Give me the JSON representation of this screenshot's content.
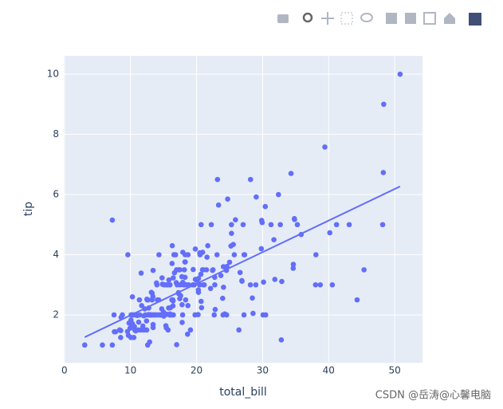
{
  "chart_data": {
    "type": "scatter",
    "x_label": "total_bill",
    "y_label": "tip",
    "xlim": [
      -0.1,
      54.2
    ],
    "ylim": [
      0.41,
      10.61
    ],
    "xticks": [
      0,
      10,
      20,
      30,
      40,
      50
    ],
    "yticks": [
      2,
      4,
      6,
      8,
      10
    ],
    "grid": true,
    "color": "#636efa",
    "background": "#e5ecf6",
    "x": [
      16.99,
      10.34,
      21.01,
      23.68,
      24.59,
      25.29,
      8.77,
      26.88,
      15.04,
      14.78,
      10.27,
      35.26,
      15.42,
      18.43,
      14.83,
      21.58,
      10.33,
      16.29,
      16.97,
      20.65,
      17.92,
      20.29,
      15.77,
      39.42,
      19.82,
      17.81,
      13.37,
      12.69,
      21.7,
      19.65,
      9.55,
      18.35,
      15.06,
      20.69,
      17.78,
      24.06,
      16.31,
      16.93,
      18.69,
      31.27,
      16.04,
      17.46,
      13.94,
      9.68,
      30.4,
      18.29,
      22.23,
      32.4,
      28.55,
      18.04,
      12.54,
      10.29,
      34.81,
      9.94,
      25.56,
      19.49,
      38.01,
      26.41,
      11.24,
      48.27,
      20.29,
      13.81,
      11.02,
      18.29,
      17.59,
      20.08,
      16.45,
      3.07,
      20.23,
      15.01,
      12.02,
      17.07,
      26.86,
      25.28,
      14.73,
      10.51,
      17.92,
      27.2,
      22.76,
      17.29,
      19.44,
      16.66,
      10.07,
      32.68,
      15.98,
      34.83,
      13.03,
      18.28,
      24.71,
      21.16,
      28.97,
      22.49,
      5.75,
      16.32,
      22.75,
      40.17,
      27.28,
      12.03,
      21.01,
      12.46,
      11.35,
      15.38,
      44.3,
      22.42,
      20.92,
      15.36,
      20.49,
      25.21,
      18.24,
      14.31,
      14.0,
      7.25,
      38.07,
      23.95,
      25.71,
      17.31,
      29.93,
      10.65,
      12.43,
      24.08,
      11.69,
      13.42,
      14.26,
      15.95,
      12.48,
      29.8,
      8.52,
      14.52,
      11.38,
      22.82,
      19.08,
      20.27,
      11.17,
      12.26,
      18.26,
      8.51,
      10.33,
      14.15,
      16.0,
      13.16,
      17.47,
      34.3,
      41.19,
      27.05,
      16.43,
      8.35,
      18.64,
      11.87,
      9.78,
      7.51,
      14.07,
      13.13,
      17.26,
      24.55,
      19.77,
      29.85,
      48.17,
      25.0,
      13.39,
      16.49,
      21.5,
      12.66,
      16.21,
      13.81,
      17.51,
      24.52,
      20.76,
      31.71,
      10.59,
      10.63,
      50.81,
      15.81,
      7.25,
      31.85,
      16.82,
      32.9,
      17.89,
      14.48,
      9.6,
      34.63,
      34.65,
      23.33,
      45.35,
      23.17,
      40.55,
      20.69,
      20.9,
      30.46,
      18.15,
      23.1,
      15.69,
      19.81,
      28.44,
      15.48,
      16.58,
      7.56,
      10.34,
      43.11,
      13.0,
      13.51,
      18.71,
      12.74,
      13.0,
      16.4,
      20.53,
      16.47,
      26.59,
      38.73,
      24.27,
      12.76,
      30.06,
      25.89,
      48.33,
      13.27,
      28.17,
      12.9,
      28.15,
      11.59,
      7.74,
      30.14,
      12.16,
      13.42,
      8.58,
      15.98,
      13.42,
      16.27,
      10.09,
      20.45,
      13.28,
      22.12,
      24.01,
      15.69,
      11.61,
      10.77,
      15.53,
      10.07,
      12.6,
      32.83,
      35.83,
      29.03,
      27.18,
      22.67,
      17.82,
      18.78
    ],
    "values": [
      1.01,
      1.66,
      3.5,
      3.31,
      3.61,
      4.71,
      2.0,
      3.12,
      1.96,
      3.23,
      1.71,
      5.0,
      1.57,
      3.0,
      3.02,
      3.92,
      1.67,
      3.71,
      3.5,
      3.35,
      4.08,
      2.75,
      2.23,
      7.58,
      3.18,
      2.34,
      2.0,
      2.0,
      4.3,
      3.0,
      1.45,
      2.5,
      3.0,
      2.45,
      3.27,
      3.6,
      2.0,
      3.07,
      2.31,
      5.0,
      2.24,
      2.54,
      3.06,
      1.32,
      5.6,
      3.0,
      5.0,
      6.0,
      2.05,
      3.0,
      2.5,
      2.6,
      5.2,
      1.56,
      4.34,
      3.51,
      3.0,
      1.5,
      1.76,
      6.73,
      3.21,
      2.0,
      1.98,
      3.76,
      2.64,
      3.15,
      2.47,
      1.0,
      2.01,
      2.09,
      1.97,
      3.0,
      3.14,
      5.0,
      2.2,
      1.25,
      3.08,
      4.0,
      3.0,
      2.71,
      3.0,
      3.4,
      1.83,
      5.0,
      2.03,
      5.17,
      2.0,
      4.0,
      5.85,
      3.0,
      3.0,
      3.5,
      1.0,
      4.3,
      3.25,
      4.73,
      4.0,
      1.5,
      3.0,
      1.5,
      2.5,
      3.0,
      2.5,
      3.48,
      4.08,
      1.64,
      4.06,
      4.29,
      3.76,
      4.0,
      3.0,
      1.0,
      4.0,
      2.55,
      4.0,
      3.5,
      5.07,
      1.5,
      1.8,
      2.92,
      2.31,
      1.68,
      2.5,
      2.0,
      2.52,
      4.2,
      1.48,
      2.0,
      2.0,
      2.18,
      1.5,
      2.83,
      1.5,
      2.0,
      3.25,
      1.25,
      2.0,
      2.0,
      2.0,
      2.75,
      3.5,
      6.7,
      5.0,
      5.0,
      2.3,
      1.5,
      1.36,
      1.63,
      1.73,
      2.0,
      2.5,
      2.0,
      2.74,
      2.0,
      2.0,
      5.14,
      5.0,
      3.75,
      2.61,
      2.0,
      3.5,
      2.5,
      2.0,
      2.0,
      3.0,
      3.48,
      2.24,
      4.5,
      1.61,
      2.0,
      10.0,
      3.16,
      5.15,
      3.18,
      4.0,
      3.11,
      2.0,
      2.0,
      4.0,
      3.55,
      3.68,
      5.65,
      3.5,
      6.5,
      3.0,
      5.0,
      3.5,
      2.0,
      3.5,
      4.0,
      1.5,
      4.19,
      2.56,
      2.02,
      4.0,
      1.44,
      2.0,
      5.0,
      2.0,
      2.0,
      4.0,
      2.01,
      2.0,
      2.5,
      4.0,
      3.23,
      3.41,
      3.0,
      2.03,
      2.23,
      2.0,
      5.16,
      9.0,
      2.5,
      6.5,
      1.1,
      3.0,
      1.5,
      1.44,
      3.09,
      2.2,
      3.48,
      1.92,
      3.0,
      1.58,
      2.5,
      2.0,
      3.0,
      2.72,
      2.88,
      2.0,
      3.0,
      3.39,
      1.47,
      3.0,
      1.25,
      1.0,
      1.17,
      4.67,
      5.92,
      2.0,
      2.0,
      1.75,
      3.0
    ],
    "trendline": {
      "x": [
        3.07,
        50.81
      ],
      "values": [
        1.26,
        6.27
      ]
    }
  },
  "watermark": "CSDN @岳涛@心馨电脑"
}
